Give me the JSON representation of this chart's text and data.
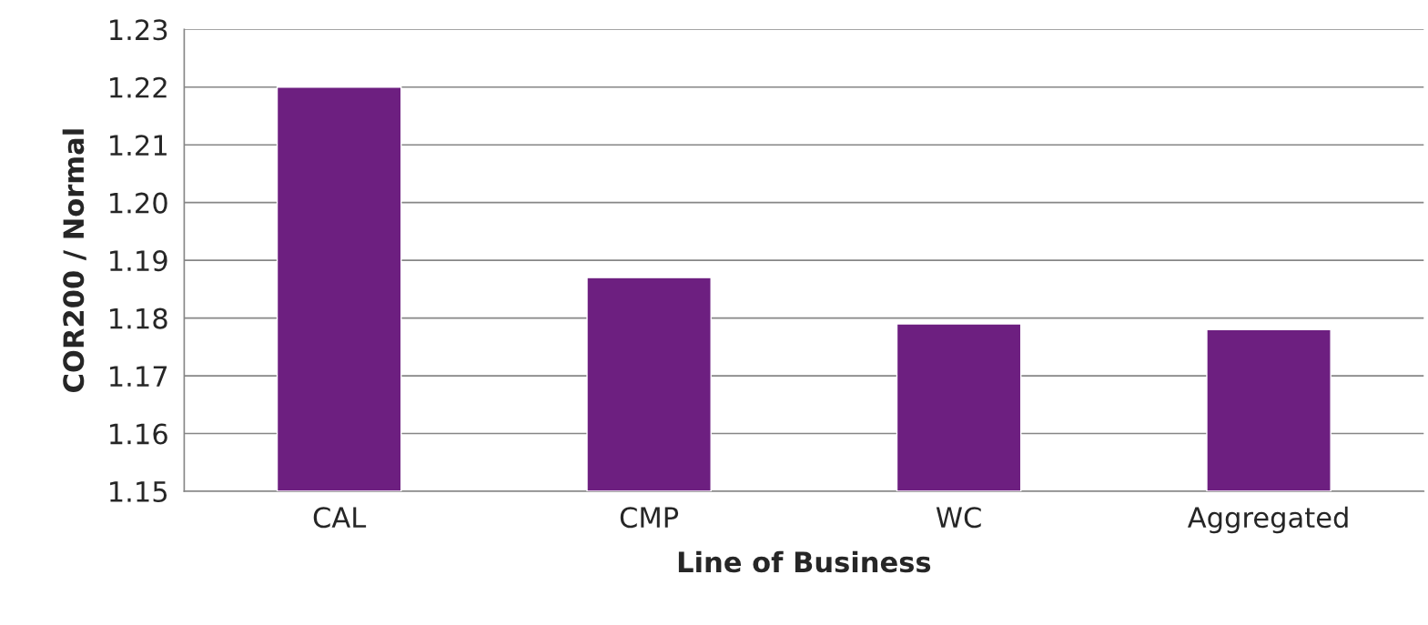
{
  "chart_data": {
    "type": "bar",
    "xlabel": "Line of Business",
    "ylabel": "COR200 / Normal",
    "categories": [
      "CAL",
      "CMP",
      "WC",
      "Aggregated"
    ],
    "values": [
      1.22,
      1.187,
      1.179,
      1.178
    ],
    "color": "#6d1f80",
    "ylim": [
      1.15,
      1.23
    ],
    "yticks": [
      {
        "value": 1.15,
        "label": "1.15"
      },
      {
        "value": 1.16,
        "label": "1.16"
      },
      {
        "value": 1.17,
        "label": "1.17"
      },
      {
        "value": 1.18,
        "label": "1.18"
      },
      {
        "value": 1.19,
        "label": "1.19"
      },
      {
        "value": 1.2,
        "label": "1.20"
      },
      {
        "value": 1.21,
        "label": "1.21"
      },
      {
        "value": 1.22,
        "label": "1.22"
      },
      {
        "value": 1.23,
        "label": "1.23"
      }
    ],
    "grid": "y",
    "legend": false
  }
}
